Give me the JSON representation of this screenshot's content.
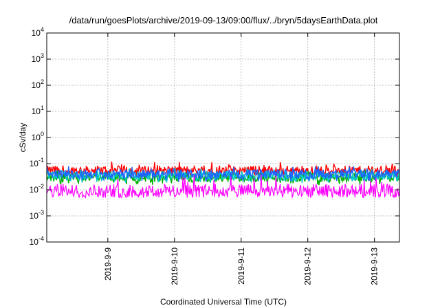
{
  "chart_data": {
    "type": "line",
    "title": "/data/run/goesPlots/archive/2019-09-13/09:00/flux/../bryn/5daysEarthData.plot",
    "xlabel": "Coordinated Universal Time (UTC)",
    "ylabel": "cSv/day",
    "y_scale": "log",
    "ylim": [
      0.0001,
      10000
    ],
    "y_ticks": [
      {
        "value": 0.0001,
        "base": "10",
        "exp": "-4"
      },
      {
        "value": 0.001,
        "base": "10",
        "exp": "-3"
      },
      {
        "value": 0.01,
        "base": "10",
        "exp": "-2"
      },
      {
        "value": 0.1,
        "base": "10",
        "exp": "-1"
      },
      {
        "value": 1,
        "base": "10",
        "exp": "0"
      },
      {
        "value": 10,
        "base": "10",
        "exp": "1"
      },
      {
        "value": 100,
        "base": "10",
        "exp": "2"
      },
      {
        "value": 1000,
        "base": "10",
        "exp": "3"
      },
      {
        "value": 10000,
        "base": "10",
        "exp": "4"
      }
    ],
    "x_type": "date",
    "xlim": [
      "2019-09-08T02:00",
      "2019-09-13T09:00"
    ],
    "x_ticks": [
      {
        "value": "2019-09-09T00:00",
        "label": "2019-9-9"
      },
      {
        "value": "2019-09-10T00:00",
        "label": "2019-9-10"
      },
      {
        "value": "2019-09-11T00:00",
        "label": "2019-9-11"
      },
      {
        "value": "2019-09-12T00:00",
        "label": "2019-9-12"
      },
      {
        "value": "2019-09-13T00:00",
        "label": "2019-9-13"
      }
    ],
    "grid": true,
    "legend": "none",
    "series": [
      {
        "color": "#ff0000",
        "typical": 0.055,
        "low": 0.03,
        "high": 0.12
      },
      {
        "color": "#00b000",
        "typical": 0.03,
        "low": 0.015,
        "high": 0.06
      },
      {
        "color": "#00c8c8",
        "typical": 0.035,
        "low": 0.018,
        "high": 0.07
      },
      {
        "color": "#1e64ff",
        "typical": 0.04,
        "low": 0.02,
        "high": 0.08
      },
      {
        "color": "#ff00ff",
        "typical": 0.009,
        "low": 0.005,
        "high": 0.04
      }
    ]
  }
}
